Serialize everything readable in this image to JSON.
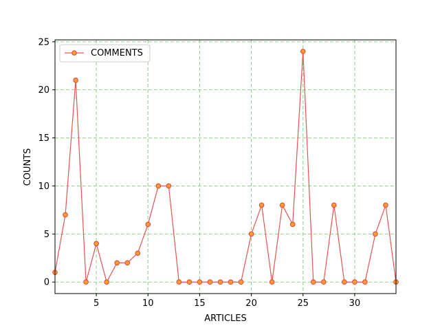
{
  "chart_data": {
    "type": "line",
    "xlabel": "ARTICLES",
    "ylabel": "COUNTS",
    "xlim": [
      1,
      34
    ],
    "ylim": [
      -1.2,
      25.2
    ],
    "xticks": [
      5,
      10,
      15,
      20,
      25,
      30
    ],
    "yticks": [
      0,
      5,
      10,
      15,
      20,
      25
    ],
    "grid": true,
    "legend_position": "upper-left",
    "series": [
      {
        "name": "COMMENTS",
        "x": [
          1,
          2,
          3,
          4,
          5,
          6,
          7,
          8,
          9,
          10,
          11,
          12,
          13,
          14,
          15,
          16,
          17,
          18,
          19,
          20,
          21,
          22,
          23,
          24,
          25,
          26,
          27,
          28,
          29,
          30,
          31,
          32,
          33,
          34
        ],
        "values": [
          1,
          7,
          21,
          0,
          4,
          0,
          2,
          2,
          3,
          6,
          10,
          10,
          0,
          0,
          0,
          0,
          0,
          0,
          0,
          5,
          8,
          0,
          8,
          6,
          24,
          0,
          0,
          8,
          0,
          0,
          0,
          5,
          8,
          0
        ],
        "line_color": "#e8534f",
        "marker_fill": "#ff9a3c",
        "marker_edge": "#e0452a"
      }
    ],
    "grid_color": "#8fcf8f"
  }
}
